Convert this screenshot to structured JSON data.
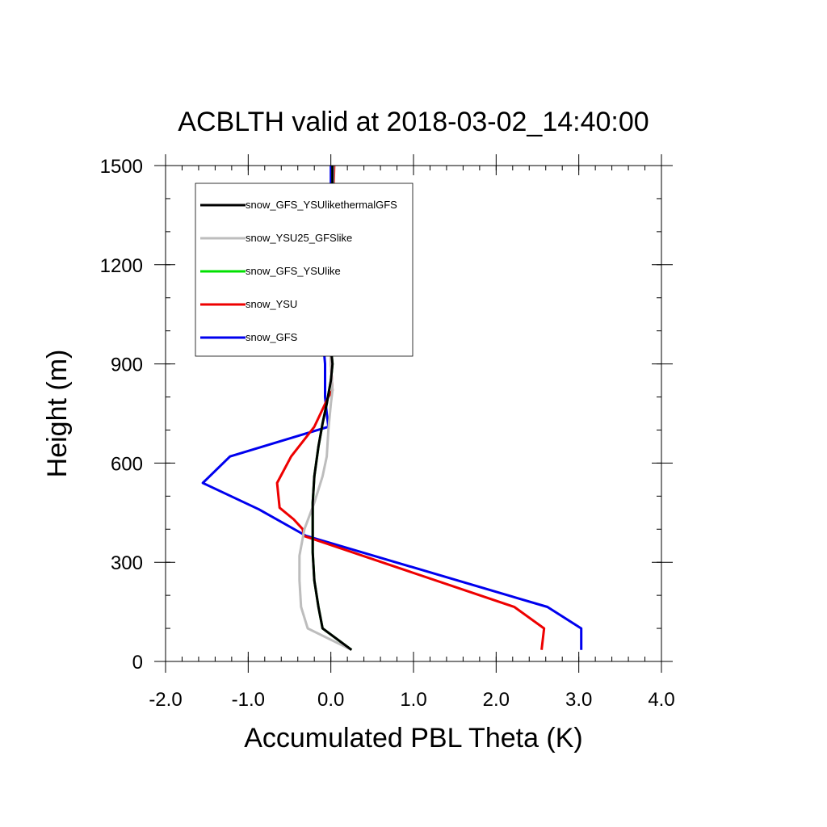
{
  "chart_data": {
    "type": "line",
    "title": "ACBLTH valid at 2018-03-02_14:40:00",
    "xlabel": "Accumulated PBL Theta (K)",
    "ylabel": "Height (m)",
    "xlim": [
      -2.0,
      4.0
    ],
    "ylim": [
      0,
      1500
    ],
    "xticks": [
      -2.0,
      -1.0,
      0.0,
      1.0,
      2.0,
      3.0,
      4.0
    ],
    "xtick_labels": [
      "-2.0",
      "-1.0",
      "0.0",
      "1.0",
      "2.0",
      "3.0",
      "4.0"
    ],
    "yticks": [
      0,
      300,
      600,
      900,
      1200,
      1500
    ],
    "ytick_labels": [
      "0",
      "300",
      "600",
      "900",
      "1200",
      "1500"
    ],
    "grid": false,
    "legend_position": "top-left",
    "series": [
      {
        "name": "snow_GFS_YSUlikethermalGFS",
        "color": "#000000",
        "points": [
          [
            0.25,
            35
          ],
          [
            -0.1,
            100
          ],
          [
            -0.15,
            165
          ],
          [
            -0.2,
            245
          ],
          [
            -0.22,
            330
          ],
          [
            -0.22,
            400
          ],
          [
            -0.22,
            480
          ],
          [
            -0.2,
            560
          ],
          [
            -0.15,
            650
          ],
          [
            -0.1,
            720
          ],
          [
            -0.05,
            780
          ],
          [
            0.0,
            850
          ],
          [
            0.02,
            900
          ],
          [
            0.0,
            950
          ],
          [
            0.0,
            1050
          ],
          [
            0.0,
            1150
          ],
          [
            0.01,
            1250
          ],
          [
            0.02,
            1350
          ],
          [
            0.02,
            1500
          ]
        ]
      },
      {
        "name": "snow_YSU25_GFSlike",
        "color": "#bdbdbd",
        "points": [
          [
            0.25,
            35
          ],
          [
            -0.28,
            100
          ],
          [
            -0.36,
            165
          ],
          [
            -0.38,
            245
          ],
          [
            -0.38,
            320
          ],
          [
            -0.32,
            400
          ],
          [
            -0.2,
            480
          ],
          [
            -0.1,
            560
          ],
          [
            -0.05,
            620
          ],
          [
            -0.03,
            700
          ],
          [
            0.0,
            780
          ],
          [
            0.02,
            820
          ],
          [
            0.0,
            900
          ],
          [
            0.0,
            1000
          ],
          [
            0.0,
            1100
          ],
          [
            0.02,
            1200
          ],
          [
            0.03,
            1300
          ],
          [
            0.03,
            1500
          ]
        ]
      },
      {
        "name": "snow_GFS_YSUlike",
        "color": "#00e000",
        "points": [
          [
            0.25,
            35
          ],
          [
            -0.1,
            100
          ],
          [
            -0.15,
            165
          ],
          [
            -0.2,
            245
          ],
          [
            -0.22,
            330
          ],
          [
            -0.22,
            400
          ],
          [
            -0.22,
            480
          ],
          [
            -0.2,
            560
          ],
          [
            -0.15,
            650
          ],
          [
            -0.1,
            720
          ],
          [
            -0.05,
            780
          ],
          [
            0.0,
            850
          ],
          [
            0.02,
            900
          ],
          [
            0.0,
            950
          ],
          [
            0.0,
            1050
          ],
          [
            0.0,
            1150
          ],
          [
            0.01,
            1250
          ],
          [
            0.02,
            1350
          ],
          [
            0.02,
            1500
          ]
        ]
      },
      {
        "name": "snow_YSU",
        "color": "#ee0000",
        "points": [
          [
            2.55,
            35
          ],
          [
            2.58,
            100
          ],
          [
            2.22,
            165
          ],
          [
            -0.33,
            380
          ],
          [
            -0.34,
            400
          ],
          [
            -0.45,
            430
          ],
          [
            -0.62,
            465
          ],
          [
            -0.65,
            540
          ],
          [
            -0.48,
            620
          ],
          [
            -0.2,
            710
          ],
          [
            -0.03,
            800
          ],
          [
            0.02,
            820
          ],
          [
            0.0,
            900
          ],
          [
            0.0,
            1000
          ],
          [
            0.0,
            1100
          ],
          [
            0.01,
            1200
          ],
          [
            0.02,
            1300
          ],
          [
            0.04,
            1500
          ]
        ]
      },
      {
        "name": "snow_GFS",
        "color": "#0000ee",
        "points": [
          [
            3.03,
            35
          ],
          [
            3.03,
            100
          ],
          [
            2.62,
            165
          ],
          [
            -0.3,
            380
          ],
          [
            -0.87,
            460
          ],
          [
            -1.55,
            540
          ],
          [
            -1.22,
            620
          ],
          [
            -0.03,
            710
          ],
          [
            -0.05,
            750
          ],
          [
            -0.07,
            800
          ],
          [
            -0.07,
            900
          ],
          [
            -0.1,
            990
          ],
          [
            -0.05,
            1100
          ],
          [
            -0.03,
            1200
          ],
          [
            -0.02,
            1300
          ],
          [
            0.0,
            1400
          ],
          [
            0.0,
            1500
          ]
        ]
      }
    ]
  }
}
